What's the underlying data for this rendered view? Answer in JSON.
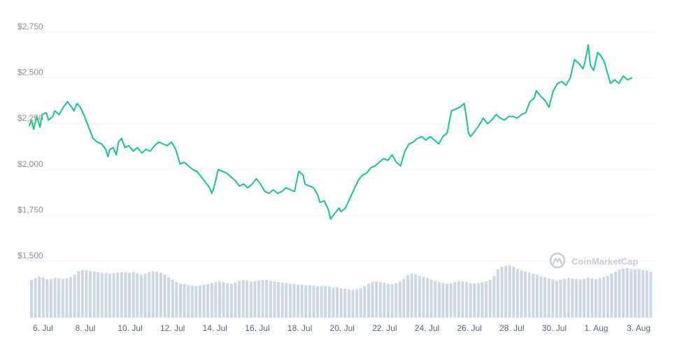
{
  "chart_data": {
    "type": "line",
    "title": "",
    "xlabel": "",
    "ylabel": "",
    "ylim": [
      1500,
      2750
    ],
    "grid": "horizontal",
    "line_color": "#16c784",
    "volume_color": "#cfd6e4",
    "y_ticks": [
      {
        "value": 2750,
        "label": "$2,750"
      },
      {
        "value": 2500,
        "label": "$2,500"
      },
      {
        "value": 2250,
        "label": "$2,250"
      },
      {
        "value": 2000,
        "label": "$2,000"
      },
      {
        "value": 1750,
        "label": "$1,750"
      },
      {
        "value": 1500,
        "label": "$1,500"
      }
    ],
    "x_ticks": [
      {
        "day": 0,
        "label": "6. Jul"
      },
      {
        "day": 2,
        "label": "8. Jul"
      },
      {
        "day": 4,
        "label": "10. Jul"
      },
      {
        "day": 6,
        "label": "12. Jul"
      },
      {
        "day": 8,
        "label": "14. Jul"
      },
      {
        "day": 10,
        "label": "16. Jul"
      },
      {
        "day": 12,
        "label": "18. Jul"
      },
      {
        "day": 14,
        "label": "20. Jul"
      },
      {
        "day": 16,
        "label": "22. Jul"
      },
      {
        "day": 18,
        "label": "24. Jul"
      },
      {
        "day": 20,
        "label": "26. Jul"
      },
      {
        "day": 22,
        "label": "28. Jul"
      },
      {
        "day": 24,
        "label": "30. Jul"
      },
      {
        "day": 26,
        "label": "1. Aug"
      },
      {
        "day": 28,
        "label": "3. Aug"
      }
    ],
    "x_range_days": [
      -0.1,
      29.35
    ],
    "series": [
      {
        "values": [
          [
            -0.1,
            2240
          ],
          [
            0.0,
            2270
          ],
          [
            0.1,
            2220
          ],
          [
            0.25,
            2290
          ],
          [
            0.4,
            2230
          ],
          [
            0.5,
            2300
          ],
          [
            0.7,
            2310
          ],
          [
            0.8,
            2270
          ],
          [
            1.0,
            2290
          ],
          [
            1.1,
            2320
          ],
          [
            1.3,
            2300
          ],
          [
            1.5,
            2340
          ],
          [
            1.7,
            2370
          ],
          [
            1.9,
            2340
          ],
          [
            2.0,
            2320
          ],
          [
            2.15,
            2360
          ],
          [
            2.3,
            2340
          ],
          [
            2.5,
            2290
          ],
          [
            2.7,
            2230
          ],
          [
            2.9,
            2170
          ],
          [
            3.1,
            2150
          ],
          [
            3.3,
            2140
          ],
          [
            3.5,
            2110
          ],
          [
            3.6,
            2070
          ],
          [
            3.7,
            2110
          ],
          [
            3.85,
            2120
          ],
          [
            4.0,
            2080
          ],
          [
            4.1,
            2150
          ],
          [
            4.25,
            2170
          ],
          [
            4.4,
            2120
          ],
          [
            4.6,
            2130
          ],
          [
            4.8,
            2100
          ],
          [
            5.0,
            2120
          ],
          [
            5.2,
            2090
          ],
          [
            5.4,
            2110
          ],
          [
            5.6,
            2100
          ],
          [
            5.8,
            2130
          ],
          [
            6.0,
            2150
          ],
          [
            6.2,
            2140
          ],
          [
            6.4,
            2130
          ],
          [
            6.6,
            2150
          ],
          [
            6.8,
            2110
          ],
          [
            7.0,
            2030
          ],
          [
            7.2,
            2040
          ],
          [
            7.4,
            2020
          ],
          [
            7.6,
            2000
          ],
          [
            7.8,
            1990
          ],
          [
            8.0,
            1960
          ],
          [
            8.2,
            1930
          ],
          [
            8.4,
            1900
          ],
          [
            8.5,
            1870
          ],
          [
            8.6,
            1900
          ],
          [
            8.8,
            2000
          ],
          [
            9.0,
            1990
          ],
          [
            9.2,
            1980
          ],
          [
            9.4,
            1960
          ],
          [
            9.6,
            1940
          ],
          [
            9.8,
            1910
          ],
          [
            10.0,
            1920
          ],
          [
            10.2,
            1900
          ],
          [
            10.4,
            1920
          ],
          [
            10.6,
            1950
          ],
          [
            10.8,
            1920
          ],
          [
            11.0,
            1880
          ],
          [
            11.2,
            1870
          ],
          [
            11.4,
            1890
          ],
          [
            11.6,
            1870
          ],
          [
            11.8,
            1880
          ],
          [
            12.0,
            1900
          ],
          [
            12.2,
            1890
          ],
          [
            12.4,
            1880
          ],
          [
            12.6,
            1990
          ],
          [
            12.8,
            1970
          ],
          [
            12.9,
            1920
          ],
          [
            13.1,
            1910
          ],
          [
            13.3,
            1900
          ],
          [
            13.5,
            1860
          ],
          [
            13.6,
            1820
          ],
          [
            13.8,
            1830
          ],
          [
            14.0,
            1780
          ],
          [
            14.1,
            1730
          ],
          [
            14.3,
            1760
          ],
          [
            14.5,
            1790
          ],
          [
            14.6,
            1770
          ],
          [
            14.8,
            1790
          ],
          [
            15.0,
            1840
          ],
          [
            15.2,
            1890
          ],
          [
            15.4,
            1940
          ],
          [
            15.6,
            1970
          ],
          [
            15.8,
            1980
          ],
          [
            16.0,
            2010
          ],
          [
            16.2,
            2020
          ],
          [
            16.4,
            2040
          ],
          [
            16.6,
            2060
          ],
          [
            16.8,
            2050
          ],
          [
            17.0,
            2080
          ],
          [
            17.2,
            2040
          ],
          [
            17.4,
            2020
          ],
          [
            17.6,
            2100
          ],
          [
            17.8,
            2140
          ],
          [
            18.0,
            2150
          ],
          [
            18.2,
            2170
          ],
          [
            18.4,
            2180
          ],
          [
            18.6,
            2160
          ],
          [
            18.8,
            2180
          ],
          [
            19.0,
            2160
          ],
          [
            19.2,
            2140
          ],
          [
            19.4,
            2180
          ],
          [
            19.6,
            2200
          ],
          [
            19.8,
            2320
          ],
          [
            20.0,
            2330
          ],
          [
            20.2,
            2340
          ],
          [
            20.4,
            2360
          ],
          [
            20.5,
            2290
          ],
          [
            20.6,
            2200
          ],
          [
            20.7,
            2180
          ],
          [
            20.9,
            2210
          ],
          [
            21.1,
            2240
          ],
          [
            21.3,
            2280
          ],
          [
            21.5,
            2250
          ],
          [
            21.7,
            2270
          ],
          [
            21.9,
            2300
          ],
          [
            22.1,
            2280
          ],
          [
            22.3,
            2270
          ],
          [
            22.5,
            2290
          ],
          [
            22.7,
            2290
          ],
          [
            22.9,
            2280
          ],
          [
            23.1,
            2300
          ],
          [
            23.3,
            2310
          ],
          [
            23.5,
            2370
          ],
          [
            23.7,
            2390
          ],
          [
            23.8,
            2430
          ],
          [
            24.0,
            2400
          ],
          [
            24.2,
            2380
          ],
          [
            24.4,
            2340
          ],
          [
            24.6,
            2430
          ],
          [
            24.8,
            2470
          ],
          [
            25.0,
            2480
          ],
          [
            25.2,
            2460
          ],
          [
            25.4,
            2500
          ],
          [
            25.6,
            2600
          ],
          [
            25.8,
            2580
          ],
          [
            26.0,
            2550
          ],
          [
            26.1,
            2590
          ],
          [
            26.25,
            2680
          ],
          [
            26.35,
            2570
          ],
          [
            26.5,
            2540
          ],
          [
            26.7,
            2640
          ],
          [
            26.85,
            2620
          ],
          [
            27.0,
            2590
          ],
          [
            27.2,
            2510
          ],
          [
            27.3,
            2470
          ],
          [
            27.5,
            2490
          ],
          [
            27.7,
            2470
          ],
          [
            27.9,
            2510
          ],
          [
            28.1,
            2490
          ],
          [
            28.3,
            2500
          ]
        ]
      }
    ],
    "volume": [
      0.72,
      0.75,
      0.79,
      0.77,
      0.73,
      0.74,
      0.76,
      0.75,
      0.74,
      0.75,
      0.77,
      0.82,
      0.89,
      0.91,
      0.9,
      0.89,
      0.88,
      0.87,
      0.86,
      0.85,
      0.84,
      0.85,
      0.86,
      0.87,
      0.87,
      0.86,
      0.87,
      0.85,
      0.82,
      0.84,
      0.87,
      0.89,
      0.88,
      0.86,
      0.82,
      0.77,
      0.72,
      0.68,
      0.65,
      0.64,
      0.62,
      0.61,
      0.6,
      0.61,
      0.63,
      0.64,
      0.66,
      0.68,
      0.7,
      0.68,
      0.66,
      0.65,
      0.67,
      0.7,
      0.72,
      0.71,
      0.69,
      0.7,
      0.71,
      0.72,
      0.72,
      0.7,
      0.69,
      0.68,
      0.67,
      0.66,
      0.65,
      0.64,
      0.63,
      0.63,
      0.62,
      0.62,
      0.61,
      0.6,
      0.61,
      0.6,
      0.59,
      0.57,
      0.58,
      0.56,
      0.55,
      0.54,
      0.53,
      0.54,
      0.56,
      0.6,
      0.65,
      0.68,
      0.69,
      0.68,
      0.67,
      0.65,
      0.64,
      0.66,
      0.7,
      0.74,
      0.82,
      0.84,
      0.83,
      0.8,
      0.78,
      0.76,
      0.73,
      0.7,
      0.68,
      0.66,
      0.65,
      0.66,
      0.68,
      0.7,
      0.69,
      0.68,
      0.66,
      0.65,
      0.66,
      0.68,
      0.69,
      0.72,
      0.8,
      0.92,
      0.97,
      0.99,
      1.0,
      0.97,
      0.93,
      0.9,
      0.88,
      0.86,
      0.84,
      0.82,
      0.79,
      0.77,
      0.75,
      0.73,
      0.7,
      0.72,
      0.74,
      0.76,
      0.75,
      0.74,
      0.73,
      0.74,
      0.76,
      0.75,
      0.74,
      0.76,
      0.78,
      0.8,
      0.84,
      0.88,
      0.92,
      0.94,
      0.95,
      0.93,
      0.92,
      0.93,
      0.91,
      0.9,
      0.88
    ]
  },
  "watermark": {
    "text": "CoinMarketCap",
    "icon": "coinmarketcap-logo-icon"
  }
}
